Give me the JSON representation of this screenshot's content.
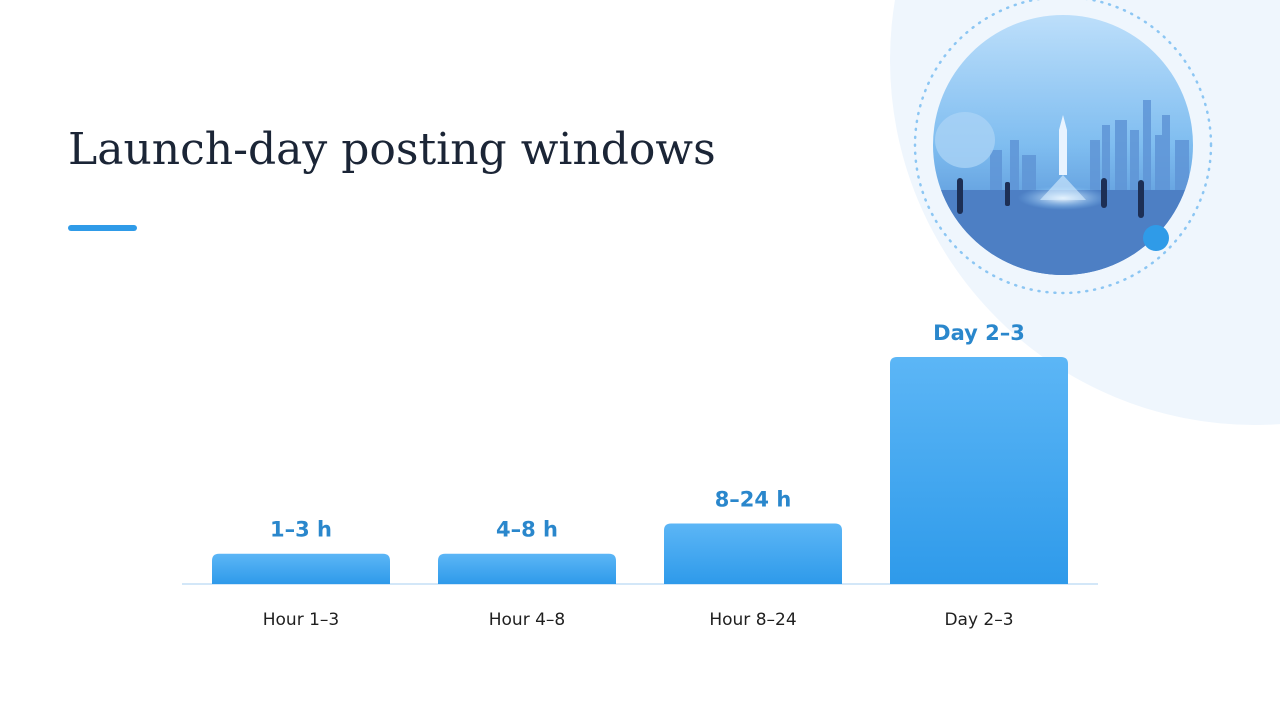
{
  "chart_data": {
    "type": "bar",
    "title": "Launch-day posting windows",
    "categories": [
      "Hour 1–3",
      "Hour 4–8",
      "Hour 8–24",
      "Day 2–3"
    ],
    "values": [
      1,
      1,
      2,
      7.5
    ],
    "value_labels": [
      "1–3 h",
      "4–8 h",
      "8–24 h",
      "Day 2–3"
    ],
    "color": "#3aa3ef",
    "ylim": [
      0,
      7.5
    ]
  }
}
